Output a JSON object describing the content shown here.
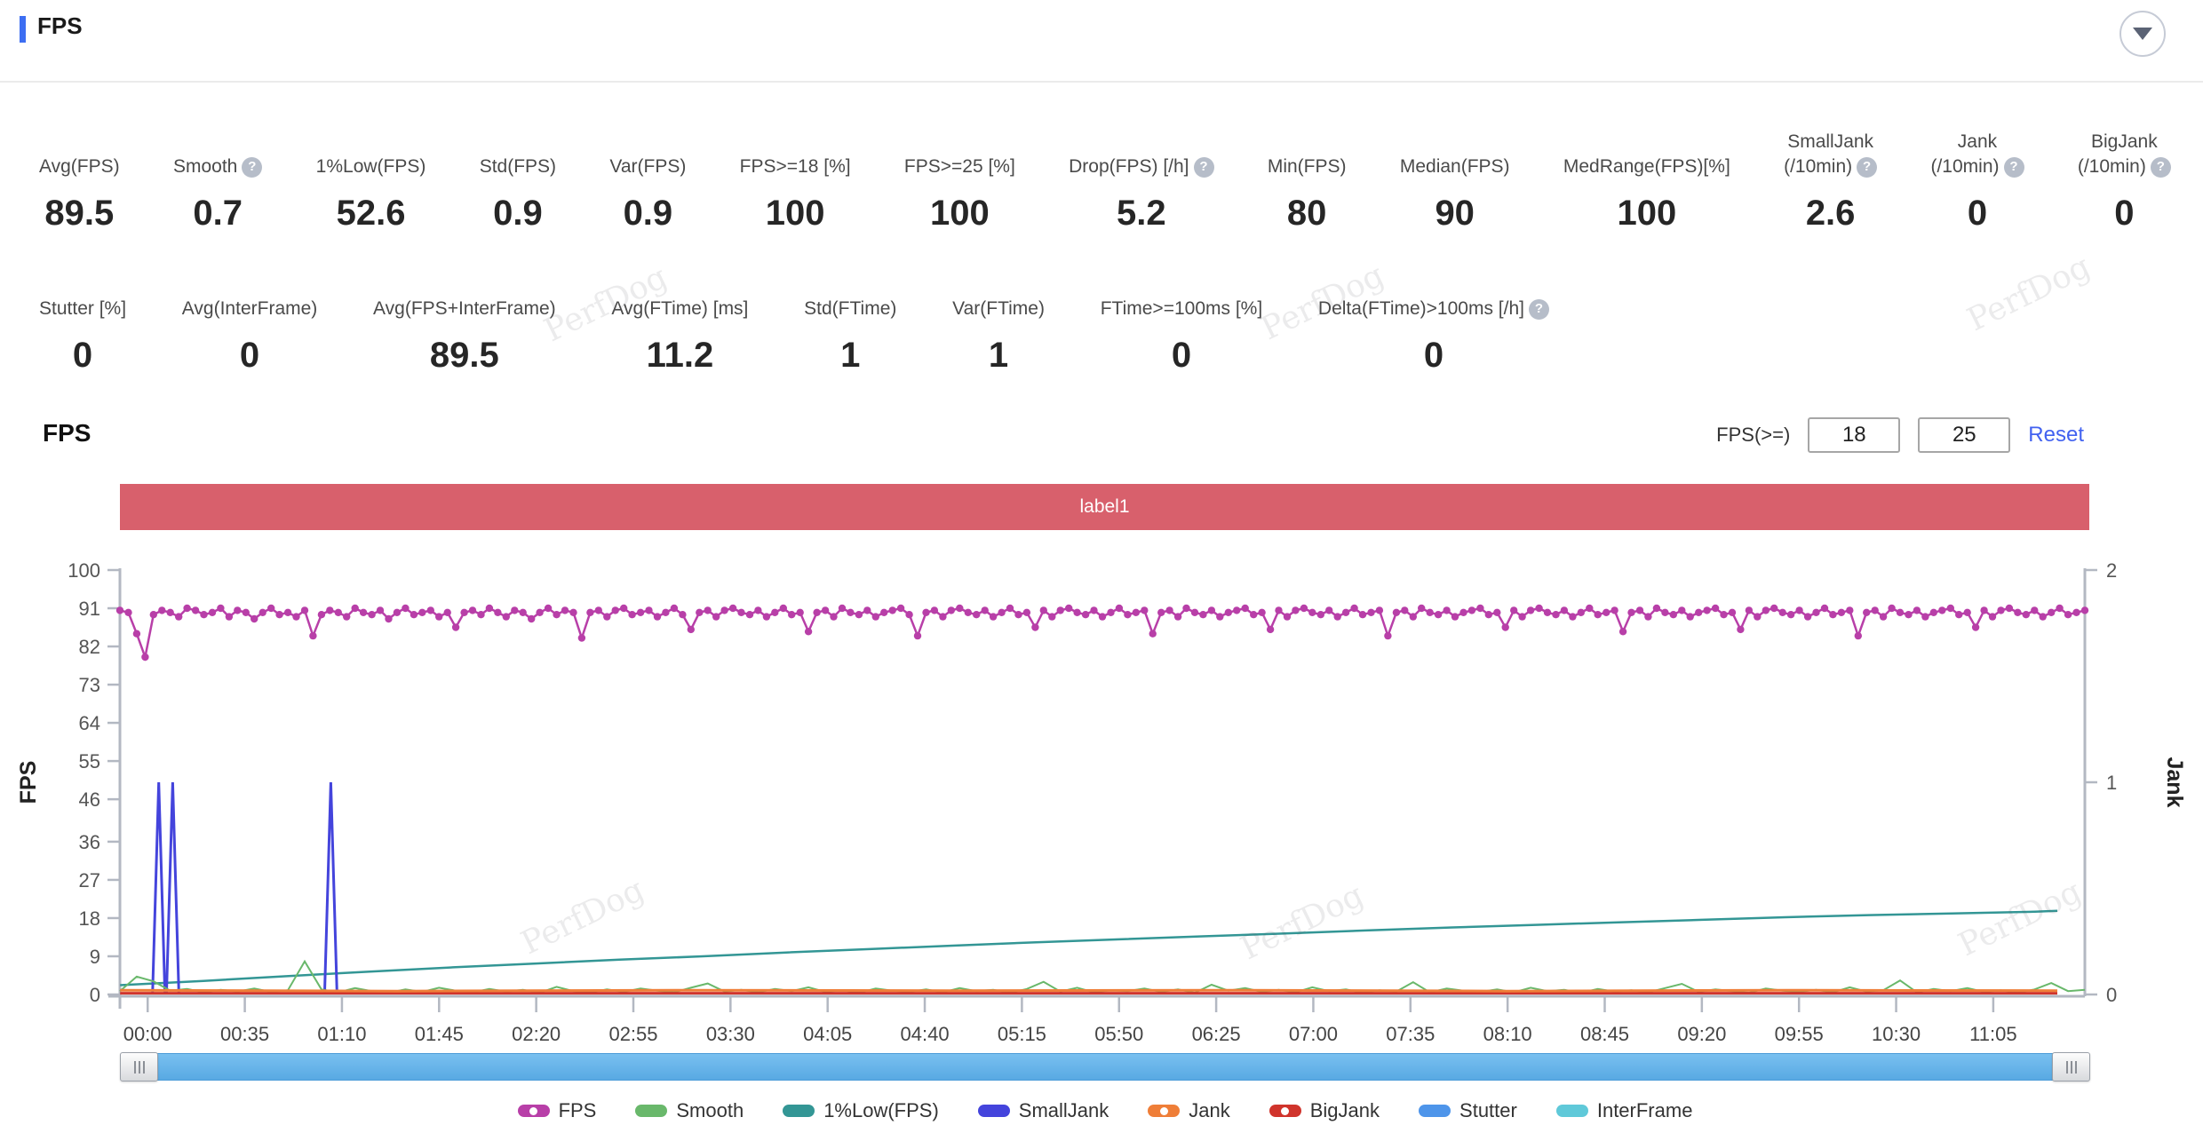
{
  "header": {
    "title": "FPS"
  },
  "watermark": "PerfDog",
  "stats": {
    "row1": [
      {
        "label": "Avg(FPS)",
        "value": "89.5",
        "help": false
      },
      {
        "label": "Smooth",
        "value": "0.7",
        "help": true
      },
      {
        "label": "1%Low(FPS)",
        "value": "52.6",
        "help": false
      },
      {
        "label": "Std(FPS)",
        "value": "0.9",
        "help": false
      },
      {
        "label": "Var(FPS)",
        "value": "0.9",
        "help": false
      },
      {
        "label": "FPS>=18 [%]",
        "value": "100",
        "help": false
      },
      {
        "label": "FPS>=25 [%]",
        "value": "100",
        "help": false
      },
      {
        "label": "Drop(FPS) [/h]",
        "value": "5.2",
        "help": true
      },
      {
        "label": "Min(FPS)",
        "value": "80",
        "help": false
      },
      {
        "label": "Median(FPS)",
        "value": "90",
        "help": false
      },
      {
        "label": "MedRange(FPS)[%]",
        "value": "100",
        "help": false
      },
      {
        "label": "SmallJank",
        "label2": "(/10min)",
        "value": "2.6",
        "help": true
      },
      {
        "label": "Jank",
        "label2": "(/10min)",
        "value": "0",
        "help": true
      },
      {
        "label": "BigJank",
        "label2": "(/10min)",
        "value": "0",
        "help": true
      }
    ],
    "row2": [
      {
        "label": "Stutter [%]",
        "value": "0",
        "help": false
      },
      {
        "label": "Avg(InterFrame)",
        "value": "0",
        "help": false
      },
      {
        "label": "Avg(FPS+InterFrame)",
        "value": "89.5",
        "help": false
      },
      {
        "label": "Avg(FTime) [ms]",
        "value": "11.2",
        "help": false
      },
      {
        "label": "Std(FTime)",
        "value": "1",
        "help": false
      },
      {
        "label": "Var(FTime)",
        "value": "1",
        "help": false
      },
      {
        "label": "FTime>=100ms [%]",
        "value": "0",
        "help": false
      },
      {
        "label": "Delta(FTime)>100ms [/h]",
        "value": "0",
        "help": true
      }
    ]
  },
  "chart_section": {
    "title": "FPS",
    "filter_label": "FPS(>=)",
    "filter_inputs": [
      "18",
      "25"
    ],
    "reset_label": "Reset",
    "banner": {
      "text": "label1",
      "color": "#d8606c"
    }
  },
  "chart_data": {
    "type": "line",
    "title": "label1",
    "x_axis": {
      "unit": "mm:ss",
      "tick_interval_s": 35,
      "tick_labels": [
        "00:00",
        "00:35",
        "01:10",
        "01:45",
        "02:20",
        "02:55",
        "03:30",
        "04:05",
        "04:40",
        "05:15",
        "05:50",
        "06:25",
        "07:00",
        "07:35",
        "08:10",
        "08:45",
        "09:20",
        "09:55",
        "10:30",
        "11:05"
      ]
    },
    "y_axis_left": {
      "label": "FPS",
      "ticks": [
        0,
        9,
        18,
        27,
        36,
        46,
        55,
        64,
        73,
        82,
        91,
        100
      ],
      "range": [
        0,
        100
      ]
    },
    "y_axis_right": {
      "label": "Jank",
      "ticks": [
        0,
        1,
        2
      ],
      "range": [
        0,
        2
      ]
    },
    "legend": [
      {
        "name": "FPS",
        "color": "#b83fa8",
        "marker": true
      },
      {
        "name": "Smooth",
        "color": "#69b86b",
        "marker": false
      },
      {
        "name": "1%Low(FPS)",
        "color": "#339695",
        "marker": false
      },
      {
        "name": "SmallJank",
        "color": "#4444dc",
        "marker": false
      },
      {
        "name": "Jank",
        "color": "#ef7e38",
        "marker": true
      },
      {
        "name": "BigJank",
        "color": "#d0342c",
        "marker": true
      },
      {
        "name": "Stutter",
        "color": "#4e95ea",
        "marker": false
      },
      {
        "name": "InterFrame",
        "color": "#5fc9d9",
        "marker": false
      }
    ],
    "series": [
      {
        "name": "FPS",
        "axis": "left",
        "color": "#b83fa8",
        "marker": "circle",
        "sample_interval_s": 3,
        "values": [
          90.5,
          90,
          85,
          79.5,
          89.5,
          90.5,
          90,
          89,
          91,
          90.5,
          89.5,
          90,
          91,
          89,
          90.5,
          90,
          88.5,
          90,
          91,
          89.5,
          90,
          89,
          90.5,
          84.5,
          89.5,
          90.5,
          90,
          89,
          91,
          90,
          89.5,
          90.5,
          88.5,
          90,
          91,
          89.5,
          90,
          90.5,
          89,
          90,
          86.5,
          90,
          90.5,
          89.5,
          91,
          90,
          89,
          90.5,
          90,
          88.5,
          90,
          91,
          89.5,
          90.5,
          90,
          84,
          90,
          90.5,
          89,
          90.5,
          91,
          89.5,
          90,
          90.5,
          89,
          90,
          91,
          89.5,
          86,
          90,
          90.5,
          89,
          90.5,
          91,
          90,
          89.5,
          90.5,
          89,
          90,
          91,
          89.5,
          90,
          85.5,
          90,
          90.5,
          89,
          91,
          90,
          89.5,
          90.5,
          89,
          90,
          90.5,
          91,
          89.5,
          84.5,
          90,
          90.5,
          89,
          90.5,
          91,
          90,
          89.5,
          90.5,
          89,
          90,
          91,
          89.5,
          90,
          86.5,
          90.5,
          89,
          90.5,
          91,
          90,
          89.5,
          90.5,
          89,
          90,
          91,
          89.5,
          90,
          90.5,
          85,
          90,
          90.5,
          89,
          91,
          90,
          89.5,
          90.5,
          89,
          90,
          90.5,
          91,
          89.5,
          90,
          86,
          90.5,
          89,
          90.5,
          91,
          90,
          89.5,
          90.5,
          89,
          90,
          91,
          89.5,
          90,
          90.5,
          84.5,
          90,
          90.5,
          89,
          91,
          90,
          89.5,
          90.5,
          89,
          90,
          90.5,
          91,
          89.5,
          90,
          86.5,
          90.5,
          89,
          90.5,
          91,
          90,
          89.5,
          90.5,
          89,
          90,
          91,
          89.5,
          90,
          90.5,
          85.5,
          90,
          90.5,
          89,
          91,
          90,
          89.5,
          90.5,
          89,
          90,
          90.5,
          91,
          89.5,
          90,
          86,
          90.5,
          89,
          90.5,
          91,
          90,
          89.5,
          90.5,
          89,
          90,
          91,
          89.5,
          90,
          90.5,
          84.5,
          90,
          90.5,
          89,
          91,
          90,
          89.5,
          90.5,
          89,
          90,
          90.5,
          91,
          89.5,
          90,
          86.5,
          90.5,
          89,
          90.5,
          91,
          90,
          89.5,
          90.5,
          89,
          90,
          91,
          89.5,
          90,
          90.5
        ]
      },
      {
        "name": "Smooth",
        "axis": "left",
        "color": "#69b86b",
        "sample_interval_s": 6,
        "values": [
          0.8,
          4.2,
          3.1,
          0.9,
          1.3,
          0.5,
          1.1,
          0.7,
          1.4,
          0.6,
          1.0,
          7.8,
          1.2,
          0.5,
          1.5,
          0.8,
          0.4,
          1.2,
          0.6,
          1.6,
          0.9,
          0.5,
          1.3,
          0.7,
          1.1,
          0.4,
          1.8,
          0.8,
          0.5,
          1.2,
          0.6,
          1.4,
          0.9,
          0.5,
          1.6,
          2.6,
          0.7,
          1.1,
          0.5,
          1.3,
          0.8,
          1.7,
          0.6,
          1.0,
          0.4,
          1.4,
          0.9,
          0.6,
          1.2,
          0.5,
          1.5,
          0.8,
          1.1,
          0.4,
          1.3,
          3.0,
          0.7,
          1.6,
          0.5,
          1.0,
          0.8,
          1.4,
          0.6,
          1.2,
          0.4,
          2.3,
          0.9,
          1.5,
          0.6,
          1.1,
          0.5,
          1.7,
          0.8,
          1.2,
          0.4,
          1.0,
          0.7,
          2.9,
          0.5,
          1.4,
          0.9,
          0.6,
          1.2,
          0.5,
          1.6,
          0.8,
          1.1,
          0.4,
          1.3,
          0.7,
          1.0,
          0.5,
          1.5,
          2.5,
          0.6,
          1.2,
          0.8,
          0.4,
          1.4,
          0.9,
          0.6,
          1.1,
          0.5,
          1.7,
          0.7,
          1.0,
          3.3,
          0.5,
          1.3,
          0.8,
          1.5,
          0.6,
          1.0,
          0.4,
          1.2,
          2.7,
          0.8,
          1.1
        ]
      },
      {
        "name": "1%Low(FPS)",
        "axis": "left",
        "color": "#339695",
        "points": [
          [
            0,
            2.2
          ],
          [
            30,
            3.2
          ],
          [
            60,
            4.3
          ],
          [
            90,
            5.4
          ],
          [
            120,
            6.4
          ],
          [
            150,
            7.3
          ],
          [
            180,
            8.2
          ],
          [
            210,
            9.0
          ],
          [
            240,
            9.9
          ],
          [
            270,
            10.7
          ],
          [
            300,
            11.5
          ],
          [
            330,
            12.3
          ],
          [
            360,
            13.0
          ],
          [
            390,
            13.7
          ],
          [
            420,
            14.4
          ],
          [
            450,
            15.1
          ],
          [
            480,
            15.8
          ],
          [
            510,
            16.4
          ],
          [
            540,
            17.0
          ],
          [
            570,
            17.6
          ],
          [
            600,
            18.2
          ],
          [
            630,
            18.7
          ],
          [
            660,
            19.1
          ],
          [
            690,
            19.5
          ],
          [
            698,
            19.7
          ]
        ]
      },
      {
        "name": "SmallJank",
        "axis": "right",
        "color": "#4444dc",
        "spikes": [
          [
            4,
            1
          ],
          [
            9,
            1
          ],
          [
            66,
            1
          ]
        ]
      },
      {
        "name": "Jank",
        "axis": "right",
        "color": "#ef7e38",
        "points": [
          [
            0,
            0.02
          ],
          [
            100,
            0.016
          ],
          [
            200,
            0.02
          ],
          [
            300,
            0.018
          ],
          [
            400,
            0.02
          ],
          [
            500,
            0.016
          ],
          [
            600,
            0.02
          ],
          [
            698,
            0.018
          ]
        ]
      },
      {
        "name": "BigJank",
        "axis": "right",
        "color": "#d0342c",
        "points": [
          [
            0,
            0.006
          ],
          [
            698,
            0.006
          ]
        ]
      },
      {
        "name": "Stutter",
        "axis": "right",
        "color": "#4e95ea",
        "points": [
          [
            0,
            0
          ],
          [
            698,
            0
          ]
        ]
      },
      {
        "name": "InterFrame",
        "axis": "right",
        "color": "#5fc9d9",
        "points": [
          [
            0,
            0
          ],
          [
            698,
            0
          ]
        ]
      }
    ]
  }
}
